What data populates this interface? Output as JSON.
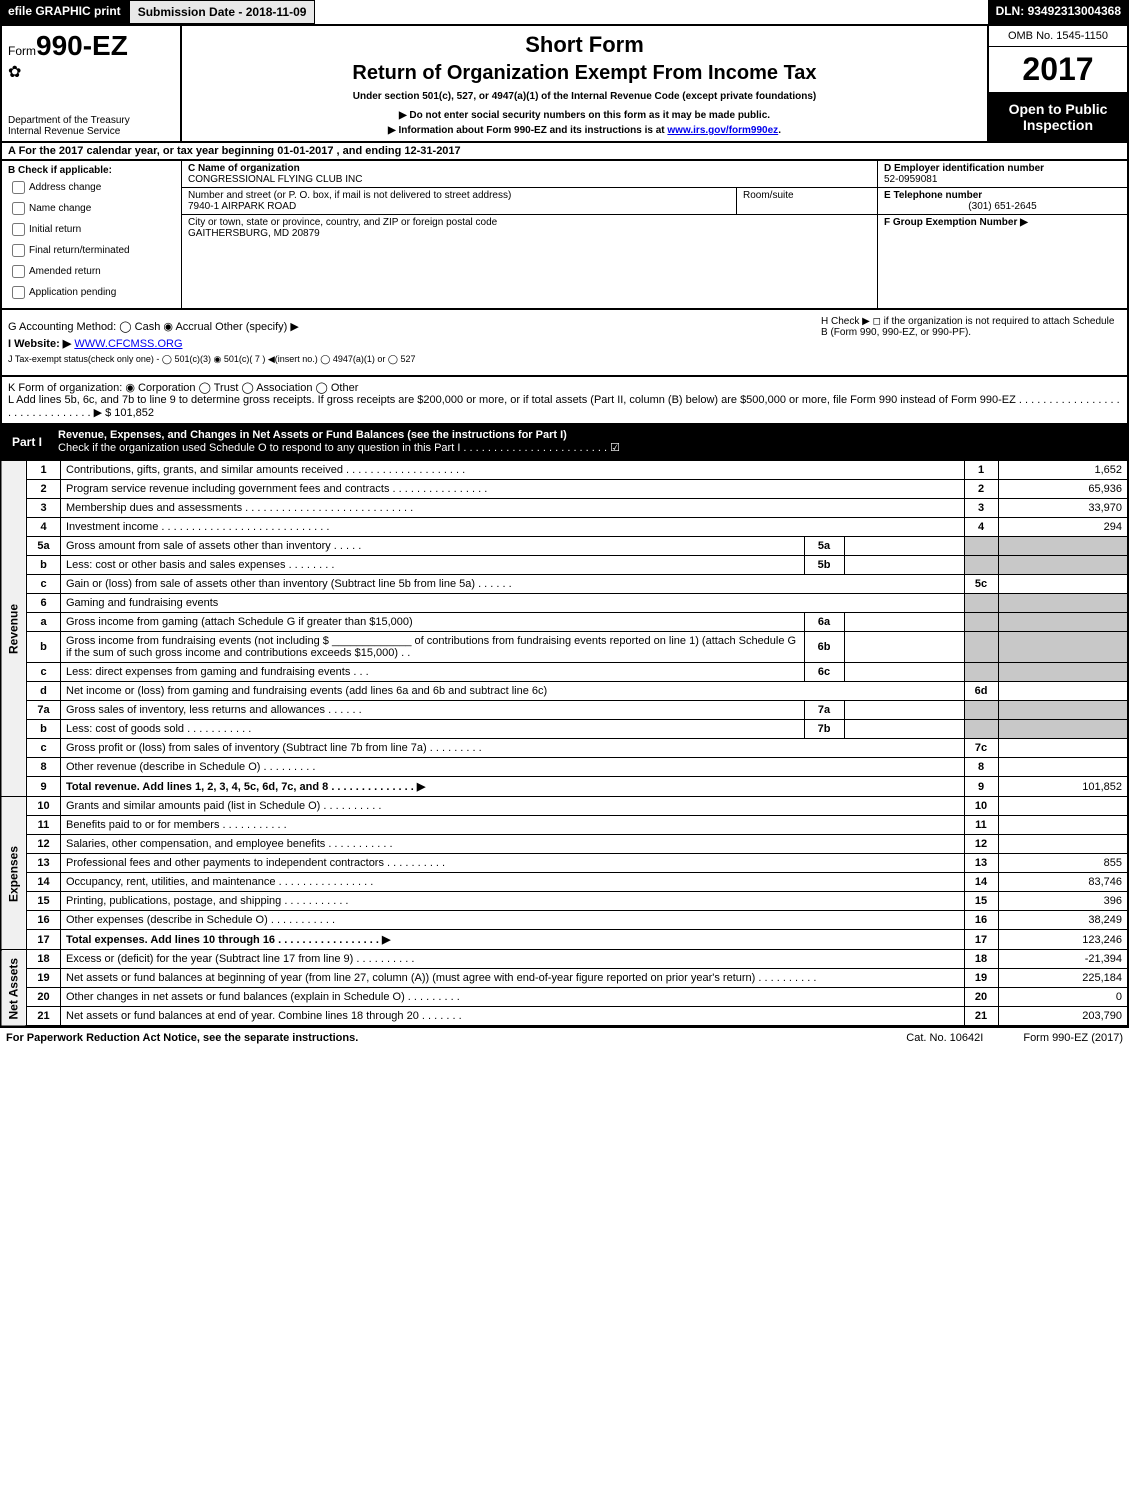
{
  "topbar": {
    "efile": "efile GRAPHIC print",
    "submission_label": "Submission Date - ",
    "submission_date": "2018-11-09",
    "dln_label": "DLN: ",
    "dln": "93492313004368"
  },
  "header": {
    "form_prefix": "Form",
    "form_number": "990-EZ",
    "short_form": "Short Form",
    "title": "Return of Organization Exempt From Income Tax",
    "subtitle": "Under section 501(c), 527, or 4947(a)(1) of the Internal Revenue Code (except private foundations)",
    "warn1": "▶ Do not enter social security numbers on this form as it may be made public.",
    "warn2_prefix": "▶ Information about Form 990-EZ and its instructions is at ",
    "warn2_link": "www.irs.gov/form990ez",
    "warn2_suffix": ".",
    "dept": "Department of the Treasury\nInternal Revenue Service",
    "omb": "OMB No. 1545-1150",
    "year": "2017",
    "open_public": "Open to Public Inspection"
  },
  "line_a": {
    "prefix": "A  For the 2017 calendar year, or tax year beginning ",
    "begin": "01-01-2017",
    "mid": " , and ending ",
    "end": "12-31-2017"
  },
  "col_b": {
    "label": "B  Check if applicable:",
    "items": [
      "Address change",
      "Name change",
      "Initial return",
      "Final return/terminated",
      "Amended return",
      "Application pending"
    ]
  },
  "org": {
    "c_label": "C Name of organization",
    "c_value": "CONGRESSIONAL FLYING CLUB INC",
    "street_label": "Number and street (or P. O. box, if mail is not delivered to street address)",
    "street_value": "7940-1 AIRPARK ROAD",
    "room_label": "Room/suite",
    "city_label": "City or town, state or province, country, and ZIP or foreign postal code",
    "city_value": "GAITHERSBURG, MD  20879"
  },
  "col_def": {
    "d_label": "D Employer identification number",
    "d_value": "52-0959081",
    "e_label": "E Telephone number",
    "e_value": "(301) 651-2645",
    "f_label": "F Group Exemption Number   ▶"
  },
  "ghij": {
    "g": "G Accounting Method:   ◯ Cash   ◉ Accrual   Other (specify) ▶",
    "h": "H   Check ▶  ◻  if the organization is not required to attach Schedule B (Form 990, 990-EZ, or 990-PF).",
    "i_prefix": "I Website: ▶",
    "i_value": "WWW.CFCMSS.ORG",
    "j": "J Tax-exempt status(check only one) - ◯ 501(c)(3)  ◉ 501(c)( 7 ) ◀(insert no.)  ◯ 4947(a)(1) or  ◯ 527"
  },
  "kl": {
    "k": "K Form of organization:   ◉ Corporation   ◯ Trust   ◯ Association   ◯ Other",
    "l_prefix": "L Add lines 5b, 6c, and 7b to line 9 to determine gross receipts. If gross receipts are $200,000 or more, or if total assets (Part II, column (B) below) are $500,000 or more, file Form 990 instead of Form 990-EZ  . . . . . . . . . . . . . . . . . . . . . . . . . . . . . . . ▶ $ ",
    "l_value": "101,852"
  },
  "part1": {
    "label": "Part I",
    "title": "Revenue, Expenses, and Changes in Net Assets or Fund Balances (see the instructions for Part I)",
    "check_line": "Check if the organization used Schedule O to respond to any question in this Part I . . . . . . . . . . . . . . . . . . . . . . . .  ☑"
  },
  "sections": {
    "revenue_label": "Revenue",
    "expenses_label": "Expenses",
    "netassets_label": "Net Assets"
  },
  "rows": [
    {
      "n": "1",
      "desc": "Contributions, gifts, grants, and similar amounts received . . . . . . . . . . . . . . . . . . . .",
      "box": "1",
      "amt": "1,652"
    },
    {
      "n": "2",
      "desc": "Program service revenue including government fees and contracts . . . . . . . . . . . . . . . .",
      "box": "2",
      "amt": "65,936"
    },
    {
      "n": "3",
      "desc": "Membership dues and assessments . . . . . . . . . . . . . . . . . . . . . . . . . . . .",
      "box": "3",
      "amt": "33,970"
    },
    {
      "n": "4",
      "desc": "Investment income . . . . . . . . . . . . . . . . . . . . . . . . . . . .",
      "box": "4",
      "amt": "294"
    },
    {
      "n": "5a",
      "desc": "Gross amount from sale of assets other than inventory . . . . .",
      "mini": "5a",
      "shaded": true
    },
    {
      "n": "b",
      "desc": "Less: cost or other basis and sales expenses . . . . . . . .",
      "mini": "5b",
      "shaded": true
    },
    {
      "n": "c",
      "desc": "Gain or (loss) from sale of assets other than inventory (Subtract line 5b from line 5a)      .   .   .   .   .   .",
      "box": "5c",
      "amt": ""
    },
    {
      "n": "6",
      "desc": "Gaming and fundraising events",
      "shaded": true
    },
    {
      "n": "a",
      "desc": "Gross income from gaming (attach Schedule G if greater than $15,000)",
      "mini": "6a",
      "shaded": true
    },
    {
      "n": "b",
      "desc": "Gross income from fundraising events (not including $ _____________ of contributions from fundraising events reported on line 1) (attach Schedule G if the sum of such gross income and contributions exceeds $15,000)   .   .",
      "mini": "6b",
      "shaded": true
    },
    {
      "n": "c",
      "desc": "Less: direct expenses from gaming and fundraising events     .   .   .",
      "mini": "6c",
      "shaded": true
    },
    {
      "n": "d",
      "desc": "Net income or (loss) from gaming and fundraising events (add lines 6a and 6b and subtract line 6c)",
      "box": "6d",
      "amt": ""
    },
    {
      "n": "7a",
      "desc": "Gross sales of inventory, less returns and allowances     .   .   .   .   .   .",
      "mini": "7a",
      "shaded": true
    },
    {
      "n": "b",
      "desc": "Less: cost of goods sold     .   .   .   .   .   .   .   .   .   .   .",
      "mini": "7b",
      "shaded": true
    },
    {
      "n": "c",
      "desc": "Gross profit or (loss) from sales of inventory (Subtract line 7b from line 7a)     .   .   .   .   .   .   .   .   .",
      "box": "7c",
      "amt": ""
    },
    {
      "n": "8",
      "desc": "Other revenue (describe in Schedule O)     .   .   .   .   .   .   .   .   .",
      "box": "8",
      "amt": ""
    },
    {
      "n": "9",
      "desc": "Total revenue. Add lines 1, 2, 3, 4, 5c, 6d, 7c, and 8    .   .   .   .   .   .   .   .   .   .   .   .   .   .   ▶",
      "box": "9",
      "amt": "101,852",
      "bold": true
    },
    {
      "n": "10",
      "desc": "Grants and similar amounts paid (list in Schedule O)     .   .   .   .   .   .   .   .   .   .",
      "box": "10",
      "amt": "",
      "section": "exp"
    },
    {
      "n": "11",
      "desc": "Benefits paid to or for members     .   .   .   .   .   .   .   .   .   .   .",
      "box": "11",
      "amt": "",
      "section": "exp"
    },
    {
      "n": "12",
      "desc": "Salaries, other compensation, and employee benefits     .   .   .   .   .   .   .   .   .   .   .",
      "box": "12",
      "amt": "",
      "section": "exp"
    },
    {
      "n": "13",
      "desc": "Professional fees and other payments to independent contractors     .   .   .   .   .   .   .   .   .   .",
      "box": "13",
      "amt": "855",
      "section": "exp"
    },
    {
      "n": "14",
      "desc": "Occupancy, rent, utilities, and maintenance     .   .   .   .   .   .   .   .   .   .   .   .   .   .   .   .",
      "box": "14",
      "amt": "83,746",
      "section": "exp"
    },
    {
      "n": "15",
      "desc": "Printing, publications, postage, and shipping     .   .   .   .   .   .   .   .   .   .   .",
      "box": "15",
      "amt": "396",
      "section": "exp"
    },
    {
      "n": "16",
      "desc": "Other expenses (describe in Schedule O)     .   .   .   .   .   .   .   .   .   .   .",
      "box": "16",
      "amt": "38,249",
      "section": "exp"
    },
    {
      "n": "17",
      "desc": "Total expenses. Add lines 10 through 16    .   .   .   .   .   .   .   .   .   .   .   .   .   .   .   .   .   ▶",
      "box": "17",
      "amt": "123,246",
      "section": "exp",
      "bold": true
    },
    {
      "n": "18",
      "desc": "Excess or (deficit) for the year (Subtract line 17 from line 9)     .   .   .   .   .   .   .   .   .   .",
      "box": "18",
      "amt": "-21,394",
      "section": "net"
    },
    {
      "n": "19",
      "desc": "Net assets or fund balances at beginning of year (from line 27, column (A)) (must agree with end-of-year figure reported on prior year's return)     .   .   .   .   .   .   .   .   .   .",
      "box": "19",
      "amt": "225,184",
      "section": "net"
    },
    {
      "n": "20",
      "desc": "Other changes in net assets or fund balances (explain in Schedule O)     .   .   .   .   .   .   .   .   .",
      "box": "20",
      "amt": "0",
      "section": "net"
    },
    {
      "n": "21",
      "desc": "Net assets or fund balances at end of year. Combine lines 18 through 20     .   .   .   .   .   .   .",
      "box": "21",
      "amt": "203,790",
      "section": "net"
    }
  ],
  "footer": {
    "left": "For Paperwork Reduction Act Notice, see the separate instructions.",
    "mid": "Cat. No. 10642I",
    "right": "Form 990-EZ (2017)"
  },
  "colors": {
    "black": "#000000",
    "white": "#ffffff",
    "shaded": "#c8c8c8",
    "light": "#e8e8e8",
    "link": "#0000ee"
  }
}
